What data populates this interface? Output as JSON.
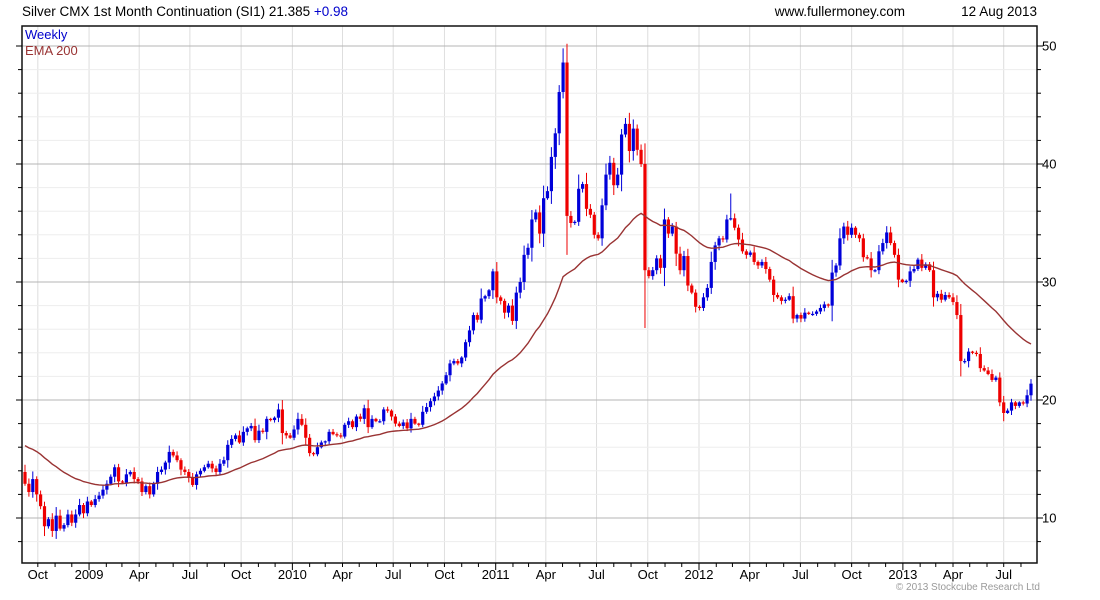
{
  "header": {
    "title": "Silver CMX 1st Month Continuation (SI1) 21.385 ",
    "change": "+0.98",
    "site": "www.fullermoney.com",
    "date": "12 Aug 2013"
  },
  "legend": {
    "series1": "Weekly",
    "series2": "EMA 200"
  },
  "footer": {
    "copyright": "© 2013 Stockcube Research Ltd"
  },
  "colors": {
    "up_candle": "#0000d9",
    "down_candle": "#ee0000",
    "ema_line": "#993333",
    "legend_weekly": "#0000cc",
    "grid_minor": "#ededed",
    "grid_major": "#b5b5b5",
    "grid_vertical": "#dedede",
    "border": "#111111",
    "copyright_text": "#9a9a9a",
    "change_text": "#0000cc"
  },
  "chart_data": {
    "type": "candlestick",
    "title": "Silver CMX 1st Month Continuation (SI1)",
    "last_price": 21.385,
    "change": 0.98,
    "interval": "weekly",
    "y_axis": {
      "side": "right",
      "min": 6.2,
      "max": 51.7,
      "tick_step": 2,
      "labels": [
        10,
        20,
        30,
        40,
        50
      ]
    },
    "x_axis": {
      "start_date": "2008-09-08",
      "labels": [
        {
          "text": "Oct",
          "date": "2008-10-01"
        },
        {
          "text": "2009",
          "date": "2009-01-01"
        },
        {
          "text": "Apr",
          "date": "2009-04-01"
        },
        {
          "text": "Jul",
          "date": "2009-07-01"
        },
        {
          "text": "Oct",
          "date": "2009-10-01"
        },
        {
          "text": "2010",
          "date": "2010-01-01"
        },
        {
          "text": "Apr",
          "date": "2010-04-01"
        },
        {
          "text": "Jul",
          "date": "2010-07-01"
        },
        {
          "text": "Oct",
          "date": "2010-10-01"
        },
        {
          "text": "2011",
          "date": "2011-01-01"
        },
        {
          "text": "Apr",
          "date": "2011-04-01"
        },
        {
          "text": "Jul",
          "date": "2011-07-01"
        },
        {
          "text": "Oct",
          "date": "2011-10-01"
        },
        {
          "text": "2012",
          "date": "2012-01-01"
        },
        {
          "text": "Apr",
          "date": "2012-04-01"
        },
        {
          "text": "Jul",
          "date": "2012-07-01"
        },
        {
          "text": "Oct",
          "date": "2012-10-01"
        },
        {
          "text": "2013",
          "date": "2013-01-01"
        },
        {
          "text": "Apr",
          "date": "2013-04-01"
        },
        {
          "text": "Jul",
          "date": "2013-07-01"
        }
      ]
    },
    "prev_close": 13.9,
    "weekly_close": [
      12.9,
      12.2,
      13.3,
      12.0,
      11.0,
      9.3,
      9.9,
      8.9,
      10.2,
      9.1,
      9.4,
      10.3,
      9.6,
      10.3,
      11.1,
      10.4,
      11.4,
      11.1,
      11.6,
      11.9,
      12.4,
      12.9,
      13.5,
      14.3,
      13.1,
      13.0,
      13.7,
      13.9,
      13.3,
      13.1,
      12.2,
      12.7,
      12.0,
      12.9,
      13.9,
      14.1,
      14.7,
      15.6,
      15.3,
      14.9,
      14.1,
      13.9,
      13.4,
      12.8,
      13.7,
      14.0,
      14.3,
      14.6,
      14.2,
      13.9,
      14.6,
      14.9,
      16.2,
      16.7,
      17.0,
      16.4,
      17.3,
      17.6,
      17.8,
      16.6,
      17.4,
      17.3,
      18.4,
      18.3,
      18.5,
      19.2,
      17.2,
      17.0,
      16.8,
      17.5,
      18.4,
      17.9,
      16.8,
      15.5,
      15.4,
      16.0,
      16.4,
      16.5,
      17.3,
      17.1,
      17.0,
      16.9,
      17.9,
      18.2,
      17.7,
      18.6,
      18.4,
      19.3,
      17.7,
      18.4,
      18.2,
      18.2,
      19.2,
      19.1,
      18.6,
      18.0,
      17.8,
      18.1,
      17.6,
      18.4,
      18.0,
      17.9,
      19.0,
      19.4,
      19.9,
      20.3,
      20.8,
      21.4,
      22.1,
      23.1,
      23.3,
      23.1,
      23.6,
      24.9,
      25.9,
      27.2,
      26.8,
      28.6,
      28.8,
      29.3,
      30.9,
      28.7,
      28.4,
      27.4,
      28.0,
      26.7,
      29.1,
      30.0,
      32.3,
      32.9,
      35.3,
      35.9,
      34.1,
      37.1,
      37.7,
      40.6,
      42.6,
      46.1,
      48.6,
      35.6,
      35.0,
      35.1,
      37.9,
      38.3,
      36.2,
      35.7,
      34.0,
      33.7,
      36.5,
      39.1,
      40.1,
      38.2,
      39.1,
      42.5,
      43.4,
      41.1,
      43.0,
      41.2,
      40.0,
      31.0,
      30.5,
      31.0,
      32.0,
      31.2,
      35.3,
      34.1,
      34.7,
      32.4,
      31.0,
      32.2,
      29.7,
      29.1,
      27.9,
      27.8,
      28.7,
      29.5,
      31.7,
      33.1,
      33.7,
      33.6,
      35.3,
      35.4,
      34.6,
      33.6,
      32.6,
      32.3,
      32.5,
      31.7,
      31.4,
      31.7,
      31.1,
      30.2,
      28.9,
      28.7,
      28.4,
      28.5,
      28.8,
      26.9,
      27.2,
      26.9,
      27.4,
      27.3,
      27.3,
      27.5,
      27.8,
      28.1,
      28.0,
      30.8,
      31.4,
      33.7,
      34.7,
      34.0,
      34.6,
      34.0,
      33.7,
      32.1,
      32.0,
      31.0,
      31.0,
      32.6,
      33.3,
      34.2,
      33.3,
      32.3,
      30.2,
      30.0,
      30.1,
      30.9,
      31.1,
      31.9,
      31.2,
      31.5,
      31.0,
      28.7,
      29.0,
      28.5,
      28.9,
      28.7,
      28.3,
      27.2,
      23.3,
      23.3,
      24.1,
      24.0,
      23.9,
      22.7,
      22.5,
      22.2,
      21.7,
      21.9,
      19.8,
      18.9,
      19.1,
      19.8,
      19.5,
      19.8,
      19.7,
      20.4,
      21.385
    ],
    "wick_overrides": {
      "7": {
        "low": 8.4
      },
      "138": {
        "high": 49.8
      },
      "139": {
        "low": 32.3
      },
      "159": {
        "low": 26.1
      },
      "181": {
        "high": 37.5
      },
      "240": {
        "low": 22.0
      },
      "251": {
        "low": 18.2
      }
    },
    "ema": {
      "label": "EMA 200",
      "period_days": 200,
      "period_weeks": 40,
      "seed_value": 16.3
    }
  }
}
